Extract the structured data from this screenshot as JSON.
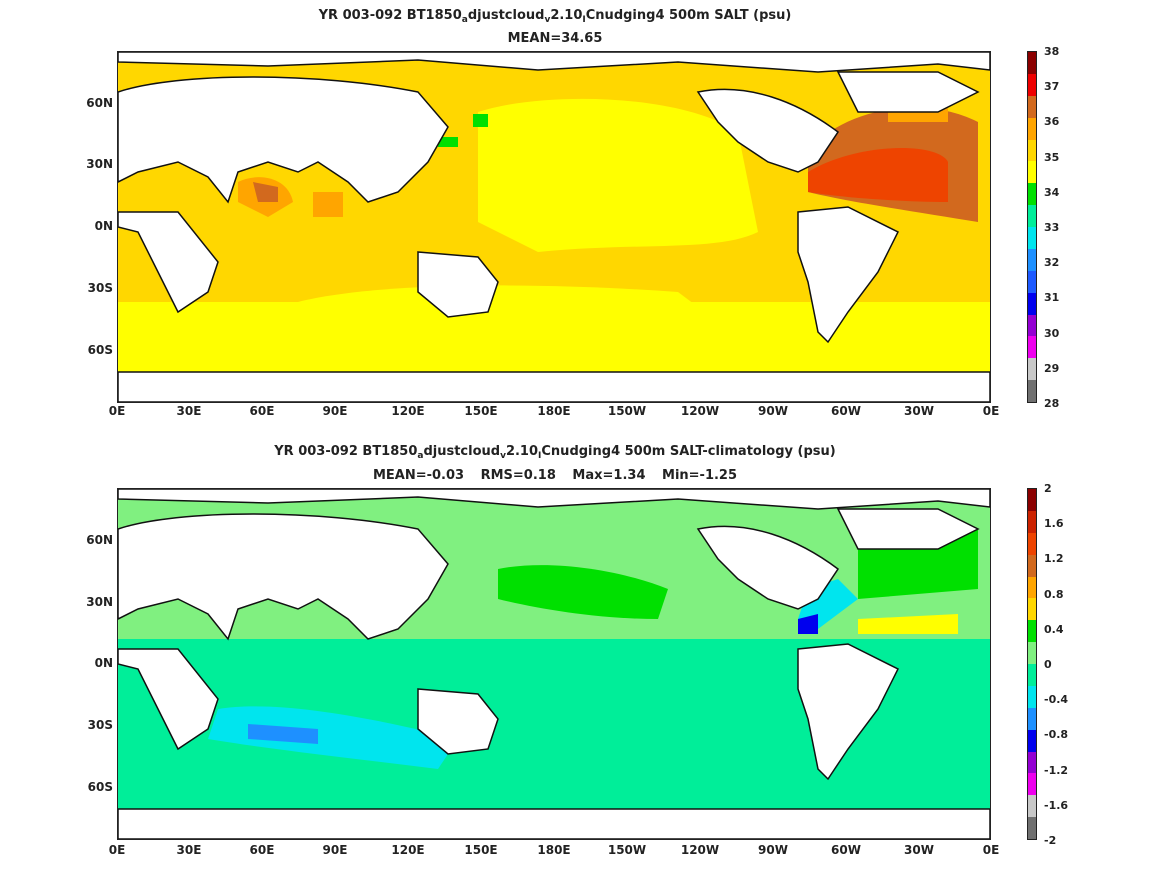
{
  "panel1": {
    "title_parts": [
      "YR 003-092 BT1850",
      "a",
      "djustcloud",
      "v",
      "2.10",
      "I",
      "Cnudging4 500m SALT (psu)"
    ],
    "stats": [
      "MEAN=34.65"
    ],
    "colorbar_labels": [
      "38",
      "37",
      "36",
      "35",
      "34",
      "33",
      "32",
      "31",
      "30",
      "29",
      "28"
    ],
    "colorbar_colors": [
      "#8b0000",
      "#ee0000",
      "#d2691e",
      "#ffa500",
      "#ffd700",
      "#ffff00",
      "#00e000",
      "#00ee99",
      "#00e5ee",
      "#1e90ff",
      "#1e5aff",
      "#0000ee",
      "#9400d3",
      "#ee00ee",
      "#c8c8c8",
      "#707070"
    ]
  },
  "panel2": {
    "title_parts": [
      "YR 003-092 BT1850",
      "a",
      "djustcloud",
      "v",
      "2.10",
      "I",
      "Cnudging4 500m SALT-climatology (psu)"
    ],
    "stats": [
      "MEAN=-0.03",
      "RMS=0.18",
      "Max=1.34",
      "Min=-1.25"
    ],
    "colorbar_labels": [
      "2",
      "1.6",
      "1.2",
      "0.8",
      "0.4",
      "0",
      "-0.4",
      "-0.8",
      "-1.2",
      "-1.6",
      "-2"
    ],
    "colorbar_colors": [
      "#8b0000",
      "#cc2200",
      "#ee4400",
      "#d2691e",
      "#ffa500",
      "#ffd700",
      "#00e000",
      "#80f080",
      "#00ee99",
      "#00e5ee",
      "#1e90ff",
      "#0000ee",
      "#9400d3",
      "#ee00ee",
      "#c8c8c8",
      "#707070"
    ]
  },
  "axes": {
    "lat_labels": [
      "60N",
      "30N",
      "0N",
      "30S",
      "60S"
    ],
    "lon_labels": [
      "0E",
      "30E",
      "60E",
      "90E",
      "120E",
      "150E",
      "180E",
      "150W",
      "120W",
      "90W",
      "60W",
      "30W",
      "0E"
    ]
  }
}
